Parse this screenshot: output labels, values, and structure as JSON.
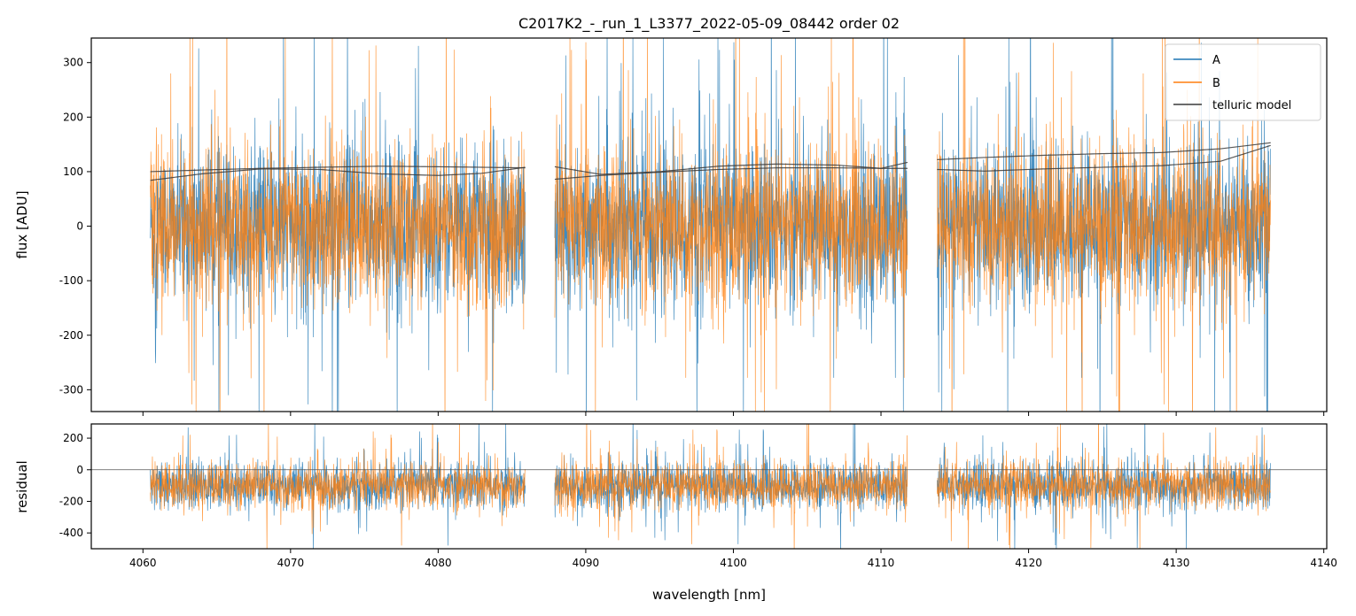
{
  "chart_data": {
    "type": "line",
    "title": "C2017K2_-_run_1_L3377_2022-05-09_08442  order 02",
    "xlabel": "wavelength [nm]",
    "xlim": [
      4056.5,
      4140.2
    ],
    "x_ticks": [
      4060,
      4070,
      4080,
      4090,
      4100,
      4110,
      4120,
      4130,
      4140
    ],
    "segments": [
      [
        4060.5,
        4085.9
      ],
      [
        4087.9,
        4111.8
      ],
      [
        4113.8,
        4136.4
      ]
    ],
    "panels": [
      {
        "name": "flux",
        "ylabel": "flux [ADU]",
        "ylim": [
          -340,
          345
        ],
        "y_ticks": [
          -300,
          -200,
          -100,
          0,
          100,
          200,
          300
        ],
        "legend": {
          "placement": "top-right",
          "entries": [
            "A",
            "B",
            "telluric model"
          ]
        },
        "series": [
          {
            "name": "A",
            "color": "#1f77b4",
            "kind": "noise",
            "center": 0,
            "spread": 130,
            "spikes": 420
          },
          {
            "name": "B",
            "color": "#ff7f0e",
            "kind": "noise",
            "center": 0,
            "spread": 130,
            "spikes": 420
          },
          {
            "name": "telluric model",
            "color": "#3a3a3a",
            "kind": "curves",
            "curves": [
              {
                "x": [
                  4060.5,
                  4064,
                  4068,
                  4072,
                  4076,
                  4080,
                  4083,
                  4085.9
                ],
                "y": [
                  100,
                  103,
                  106,
                  108,
                  110,
                  109,
                  108,
                  107
                ]
              },
              {
                "x": [
                  4060.5,
                  4064,
                  4068,
                  4072,
                  4076,
                  4080,
                  4083,
                  4085.9
                ],
                "y": [
                  84,
                  96,
                  105,
                  104,
                  96,
                  93,
                  97,
                  108
                ]
              },
              {
                "x": [
                  4087.9,
                  4091,
                  4095,
                  4099,
                  4103,
                  4107,
                  4110,
                  4111.8
                ],
                "y": [
                  86,
                  93,
                  99,
                  104,
                  107,
                  107,
                  106,
                  106
                ]
              },
              {
                "x": [
                  4087.9,
                  4091,
                  4095,
                  4099,
                  4103,
                  4107,
                  4110,
                  4111.8
                ],
                "y": [
                  109,
                  95,
                  100,
                  110,
                  114,
                  112,
                  106,
                  117
                ]
              },
              {
                "x": [
                  4113.8,
                  4117,
                  4121,
                  4125,
                  4129,
                  4133,
                  4136.4
                ],
                "y": [
                  122,
                  126,
                  130,
                  133,
                  135,
                  142,
                  153
                ]
              },
              {
                "x": [
                  4113.8,
                  4117,
                  4121,
                  4125,
                  4129,
                  4133,
                  4136.4
                ],
                "y": [
                  104,
                  101,
                  105,
                  108,
                  111,
                  119,
                  148
                ]
              }
            ]
          }
        ]
      },
      {
        "name": "residual",
        "ylabel": "residual",
        "ylim": [
          -500,
          290
        ],
        "y_ticks": [
          -400,
          -200,
          0,
          200
        ],
        "hline": 0,
        "series": [
          {
            "name": "A",
            "color": "#1f77b4",
            "kind": "noise",
            "center": -100,
            "spread": 135,
            "spikes": 400
          },
          {
            "name": "B",
            "color": "#ff7f0e",
            "kind": "noise",
            "center": -100,
            "spread": 135,
            "spikes": 400
          }
        ]
      }
    ]
  }
}
